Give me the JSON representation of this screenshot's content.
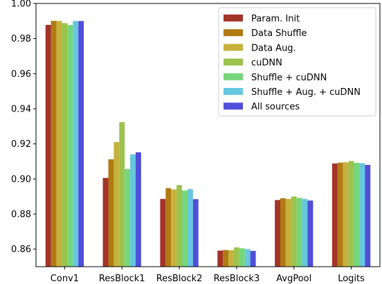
{
  "chart_data": {
    "type": "bar",
    "categories": [
      "Conv1",
      "ResBlock1",
      "ResBlock2",
      "ResBlock3",
      "AvgPool",
      "Logits"
    ],
    "series": [
      {
        "name": "Param. Init",
        "color": "#A33428",
        "values": [
          0.9878,
          0.9006,
          0.8886,
          0.8592,
          0.888,
          0.9088
        ]
      },
      {
        "name": "Data Shuffle",
        "color": "#B07A14",
        "values": [
          0.9901,
          0.9112,
          0.8948,
          0.8595,
          0.889,
          0.9093
        ]
      },
      {
        "name": "Data Aug.",
        "color": "#C6B13C",
        "values": [
          0.99,
          0.921,
          0.894,
          0.8594,
          0.8886,
          0.9095
        ]
      },
      {
        "name": "cuDNN",
        "color": "#9BC34E",
        "values": [
          0.9888,
          0.9324,
          0.8965,
          0.861,
          0.89,
          0.9102
        ]
      },
      {
        "name": "Shuffle + cuDNN",
        "color": "#76D67B",
        "values": [
          0.9877,
          0.9056,
          0.8934,
          0.8605,
          0.8892,
          0.9092
        ]
      },
      {
        "name": "Shuffle + Aug. + cuDNN",
        "color": "#66C7DD",
        "values": [
          0.99,
          0.914,
          0.8942,
          0.86,
          0.8886,
          0.909
        ]
      },
      {
        "name": "All sources",
        "color": "#4F4FD9",
        "values": [
          0.99,
          0.9152,
          0.8885,
          0.859,
          0.8877,
          0.908
        ]
      }
    ],
    "ylim": [
      0.85,
      1.0
    ],
    "yticks": [
      "0.86",
      "0.88",
      "0.90",
      "0.92",
      "0.94",
      "0.96",
      "0.98",
      "1.00"
    ],
    "ytick_values": [
      0.86,
      0.88,
      0.9,
      0.92,
      0.94,
      0.96,
      0.98,
      1.0
    ],
    "title": "",
    "xlabel": "",
    "ylabel": "",
    "legend_position": "top-right",
    "grid": false
  }
}
